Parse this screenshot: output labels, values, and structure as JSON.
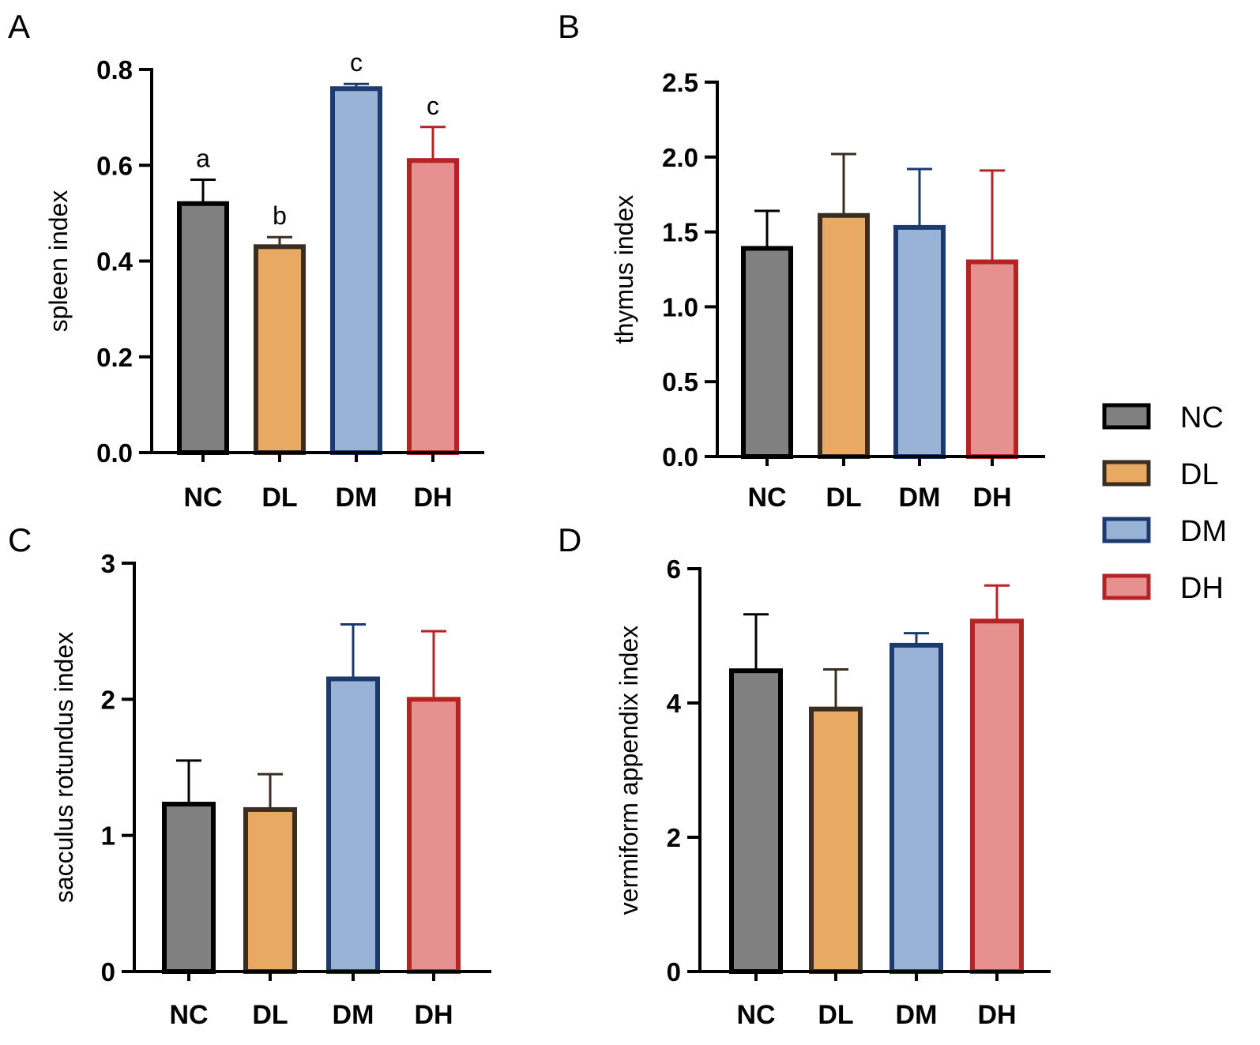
{
  "categories": [
    "NC",
    "DL",
    "DM",
    "DH"
  ],
  "colors": {
    "NC": {
      "fill": "#808080",
      "stroke": "#000000"
    },
    "DL": {
      "fill": "#e8aa62",
      "stroke": "#3a2e22"
    },
    "DM": {
      "fill": "#98b3d6",
      "stroke": "#1c3a6e"
    },
    "DH": {
      "fill": "#e69090",
      "stroke": "#b52424"
    }
  },
  "legend": {
    "items": [
      {
        "key": "NC",
        "label": "NC"
      },
      {
        "key": "DL",
        "label": "DL"
      },
      {
        "key": "DM",
        "label": "DM"
      },
      {
        "key": "DH",
        "label": "DH"
      }
    ]
  },
  "chart_data": [
    {
      "panel": "A",
      "type": "bar",
      "ylabel": "spleen index",
      "ylim": [
        0,
        0.8
      ],
      "yticks": [
        "0.0",
        "0.2",
        "0.4",
        "0.6",
        "0.8"
      ],
      "ytick_values": [
        0,
        0.2,
        0.4,
        0.6,
        0.8
      ],
      "categories": [
        "NC",
        "DL",
        "DM",
        "DH"
      ],
      "values": [
        0.52,
        0.43,
        0.76,
        0.61
      ],
      "errors": [
        0.05,
        0.02,
        0.01,
        0.07
      ],
      "annotations": [
        "a",
        "b",
        "c",
        "c"
      ]
    },
    {
      "panel": "B",
      "type": "bar",
      "ylabel": "thymus index",
      "ylim": [
        0,
        2.5
      ],
      "yticks": [
        "0.0",
        "0.5",
        "1.0",
        "1.5",
        "2.0",
        "2.5"
      ],
      "ytick_values": [
        0,
        0.5,
        1.0,
        1.5,
        2.0,
        2.5
      ],
      "categories": [
        "NC",
        "DL",
        "DM",
        "DH"
      ],
      "values": [
        1.39,
        1.61,
        1.53,
        1.3
      ],
      "errors": [
        0.25,
        0.41,
        0.39,
        0.61
      ],
      "annotations": []
    },
    {
      "panel": "C",
      "type": "bar",
      "ylabel": "sacculus rotundus index",
      "ylim": [
        0,
        3
      ],
      "yticks": [
        "0",
        "1",
        "2",
        "3"
      ],
      "ytick_values": [
        0,
        1,
        2,
        3
      ],
      "categories": [
        "NC",
        "DL",
        "DM",
        "DH"
      ],
      "values": [
        1.23,
        1.19,
        2.15,
        2.0
      ],
      "errors": [
        0.32,
        0.26,
        0.4,
        0.5
      ],
      "annotations": []
    },
    {
      "panel": "D",
      "type": "bar",
      "ylabel": "vermiform appendix index",
      "ylim": [
        0,
        6
      ],
      "yticks": [
        "0",
        "2",
        "4",
        "6"
      ],
      "ytick_values": [
        0,
        2,
        4,
        6
      ],
      "categories": [
        "NC",
        "DL",
        "DM",
        "DH"
      ],
      "values": [
        4.48,
        3.91,
        4.86,
        5.22
      ],
      "errors": [
        0.84,
        0.59,
        0.18,
        0.53
      ],
      "annotations": []
    }
  ]
}
